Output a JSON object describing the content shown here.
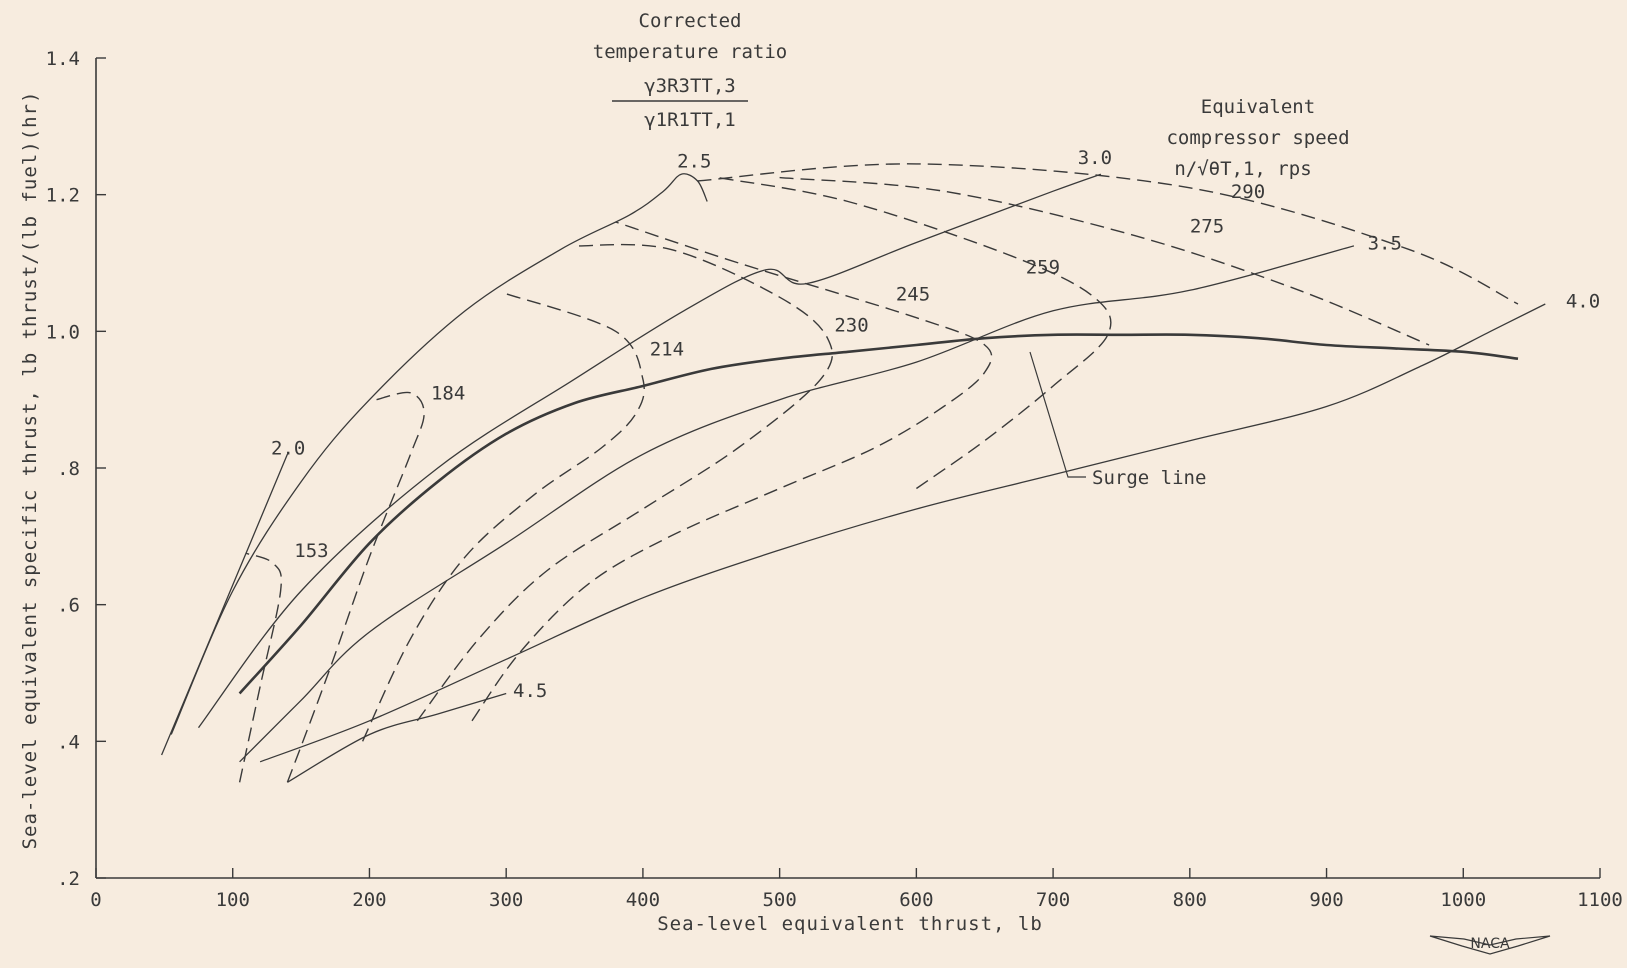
{
  "chart_data": {
    "type": "line",
    "title": "",
    "xlabel": "Sea-level equivalent thrust, lb",
    "ylabel": "Sea-level equivalent specific thrust, lb thrust/(lb fuel)(hr)",
    "xlim": [
      0,
      1100
    ],
    "ylim": [
      0.2,
      1.4
    ],
    "x_ticks": [
      0,
      100,
      200,
      300,
      400,
      500,
      600,
      700,
      800,
      900,
      1000,
      1100
    ],
    "x_tick_labels": [
      "0",
      "100",
      "200",
      "300",
      "400",
      "500",
      "600",
      "700",
      "800",
      "900",
      "1000",
      "1100"
    ],
    "y_ticks": [
      0.2,
      0.4,
      0.6,
      0.8,
      1.0,
      1.2,
      1.4
    ],
    "y_tick_labels": [
      ".2",
      ".4",
      ".6",
      ".8",
      "1.0",
      "1.2",
      "1.4"
    ],
    "grid": false,
    "legend": "none",
    "annotations": {
      "temperature_title_line1": "Corrected",
      "temperature_title_line2": "temperature ratio",
      "temperature_numerator": "γ3R3TT,3",
      "temperature_denominator": "γ1R1TT,1",
      "speed_title_line1": "Equivalent",
      "speed_title_line2": "compressor speed",
      "speed_title_line3": "n/√θT,1, rps",
      "surge_label": "Surge line"
    },
    "temperature_ratio_lines": [
      {
        "label": "2.0",
        "points": [
          [
            48,
            0.38
          ],
          [
            140,
            0.82
          ]
        ]
      },
      {
        "label": "2.5",
        "points": [
          [
            55,
            0.41
          ],
          [
            100,
            0.62
          ],
          [
            150,
            0.78
          ],
          [
            200,
            0.9
          ],
          [
            270,
            1.03
          ],
          [
            340,
            1.12
          ],
          [
            390,
            1.17
          ],
          [
            415,
            1.205
          ],
          [
            428,
            1.23
          ],
          [
            440,
            1.22
          ],
          [
            447,
            1.19
          ]
        ]
      },
      {
        "label": "3.0",
        "points": [
          [
            75,
            0.42
          ],
          [
            150,
            0.62
          ],
          [
            250,
            0.8
          ],
          [
            350,
            0.93
          ],
          [
            430,
            1.03
          ],
          [
            490,
            1.09
          ],
          [
            520,
            1.07
          ],
          [
            600,
            1.13
          ],
          [
            700,
            1.205
          ],
          [
            735,
            1.23
          ]
        ]
      },
      {
        "label": "3.5",
        "points": [
          [
            105,
            0.37
          ],
          [
            150,
            0.46
          ],
          [
            200,
            0.56
          ],
          [
            300,
            0.69
          ],
          [
            400,
            0.82
          ],
          [
            500,
            0.9
          ],
          [
            600,
            0.955
          ],
          [
            700,
            1.03
          ],
          [
            800,
            1.06
          ],
          [
            920,
            1.125
          ]
        ]
      },
      {
        "label": "4.0",
        "points": [
          [
            120,
            0.37
          ],
          [
            200,
            0.43
          ],
          [
            300,
            0.52
          ],
          [
            400,
            0.61
          ],
          [
            500,
            0.68
          ],
          [
            600,
            0.74
          ],
          [
            700,
            0.79
          ],
          [
            800,
            0.84
          ],
          [
            900,
            0.89
          ],
          [
            970,
            0.95
          ],
          [
            1020,
            1.0
          ],
          [
            1060,
            1.04
          ]
        ]
      },
      {
        "label": "4.5",
        "points": [
          [
            140,
            0.34
          ],
          [
            200,
            0.41
          ],
          [
            250,
            0.44
          ],
          [
            300,
            0.47
          ]
        ]
      }
    ],
    "speed_lines": [
      {
        "label": "153",
        "points": [
          [
            105,
            0.34
          ],
          [
            120,
            0.48
          ],
          [
            135,
            0.62
          ],
          [
            130,
            0.66
          ],
          [
            110,
            0.675
          ]
        ]
      },
      {
        "label": "184",
        "points": [
          [
            140,
            0.34
          ],
          [
            170,
            0.5
          ],
          [
            200,
            0.67
          ],
          [
            230,
            0.82
          ],
          [
            240,
            0.88
          ],
          [
            230,
            0.91
          ],
          [
            205,
            0.9
          ]
        ]
      },
      {
        "label": "214",
        "points": [
          [
            195,
            0.4
          ],
          [
            230,
            0.55
          ],
          [
            270,
            0.67
          ],
          [
            320,
            0.76
          ],
          [
            370,
            0.83
          ],
          [
            395,
            0.88
          ],
          [
            400,
            0.93
          ],
          [
            380,
            1.0
          ],
          [
            300,
            1.055
          ]
        ]
      },
      {
        "label": "230",
        "points": [
          [
            235,
            0.43
          ],
          [
            280,
            0.55
          ],
          [
            330,
            0.65
          ],
          [
            400,
            0.74
          ],
          [
            470,
            0.83
          ],
          [
            530,
            0.93
          ],
          [
            535,
            0.99
          ],
          [
            500,
            1.05
          ],
          [
            420,
            1.12
          ],
          [
            350,
            1.125
          ]
        ]
      },
      {
        "label": "245",
        "points": [
          [
            275,
            0.43
          ],
          [
            310,
            0.53
          ],
          [
            360,
            0.63
          ],
          [
            420,
            0.7
          ],
          [
            500,
            0.77
          ],
          [
            570,
            0.83
          ],
          [
            620,
            0.89
          ],
          [
            650,
            0.94
          ],
          [
            650,
            0.98
          ],
          [
            600,
            1.02
          ],
          [
            470,
            1.1
          ],
          [
            380,
            1.16
          ]
        ]
      },
      {
        "label": "259",
        "points": [
          [
            600,
            0.77
          ],
          [
            650,
            0.84
          ],
          [
            700,
            0.92
          ],
          [
            740,
            0.995
          ],
          [
            730,
            1.05
          ],
          [
            670,
            1.11
          ],
          [
            550,
            1.19
          ],
          [
            455,
            1.225
          ]
        ]
      },
      {
        "label": "275",
        "points": [
          [
            500,
            1.225
          ],
          [
            620,
            1.205
          ],
          [
            760,
            1.14
          ],
          [
            880,
            1.06
          ],
          [
            975,
            0.98
          ]
        ]
      },
      {
        "label": "290",
        "points": [
          [
            440,
            1.22
          ],
          [
            600,
            1.245
          ],
          [
            800,
            1.21
          ],
          [
            960,
            1.12
          ],
          [
            1040,
            1.04
          ]
        ]
      }
    ],
    "surge_line": [
      [
        105,
        0.47
      ],
      [
        150,
        0.57
      ],
      [
        200,
        0.69
      ],
      [
        250,
        0.78
      ],
      [
        300,
        0.85
      ],
      [
        350,
        0.895
      ],
      [
        400,
        0.92
      ],
      [
        450,
        0.945
      ],
      [
        500,
        0.96
      ],
      [
        550,
        0.97
      ],
      [
        600,
        0.98
      ],
      [
        650,
        0.99
      ],
      [
        700,
        0.995
      ],
      [
        750,
        0.995
      ],
      [
        800,
        0.995
      ],
      [
        850,
        0.99
      ],
      [
        900,
        0.98
      ],
      [
        950,
        0.975
      ],
      [
        1000,
        0.97
      ],
      [
        1040,
        0.96
      ]
    ]
  },
  "branding": {
    "logo_text": "NACA"
  }
}
